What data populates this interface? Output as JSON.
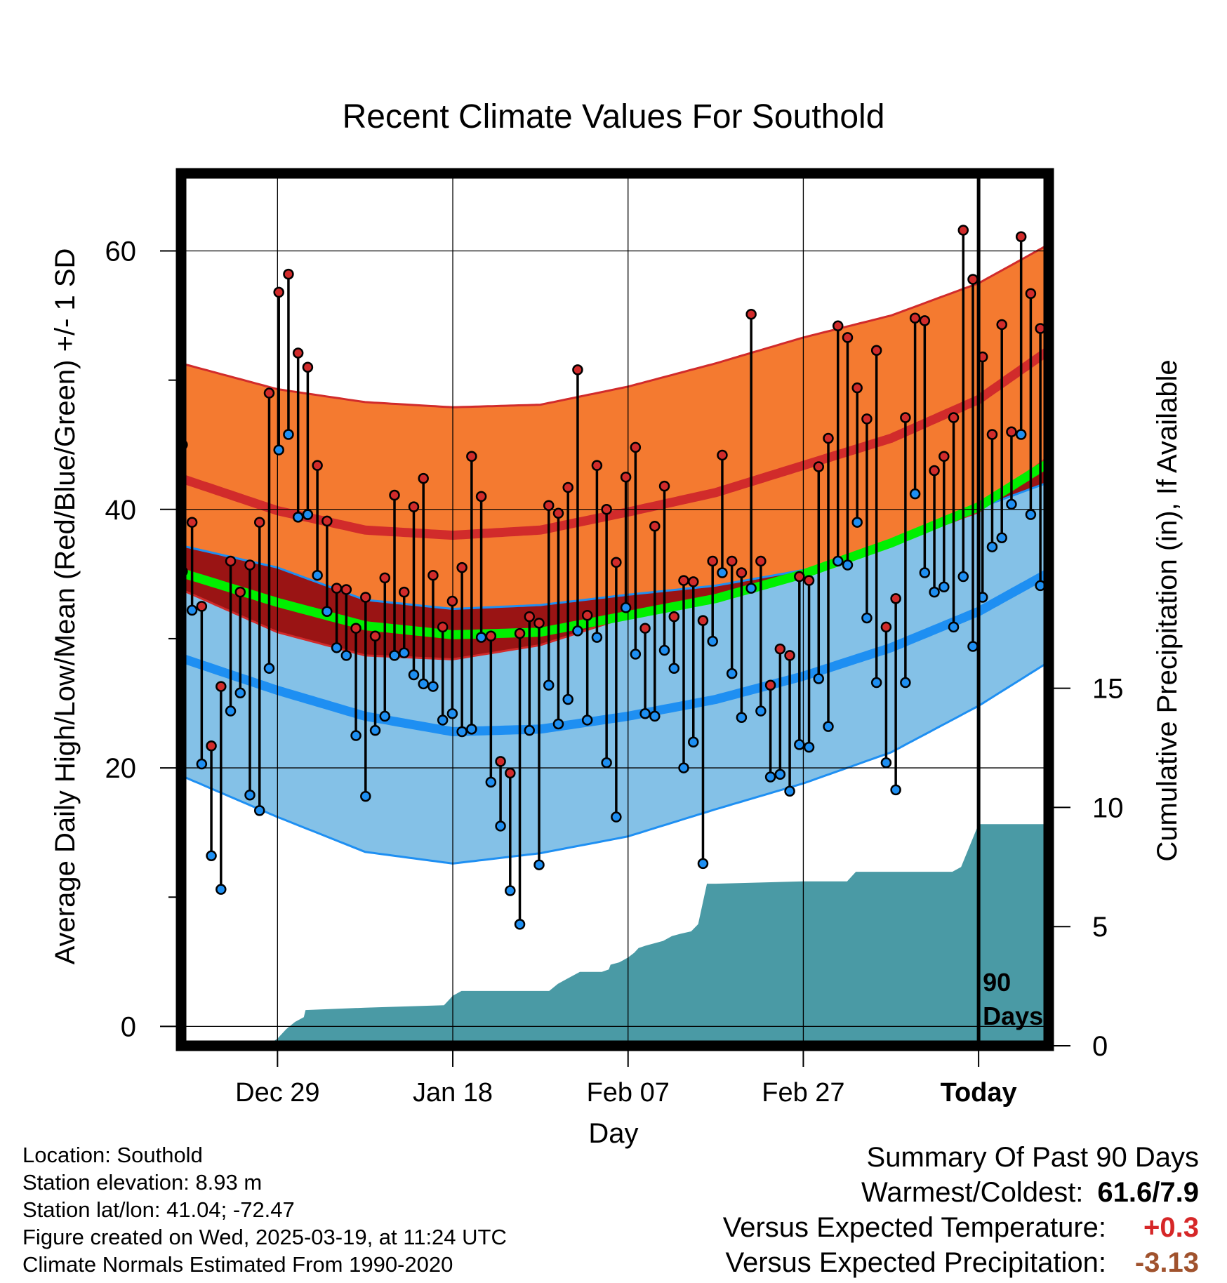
{
  "chart_data": {
    "type": "line",
    "title": "Recent Climate Values For Southold",
    "xlabel": "Day",
    "ylabel": "Average Daily High/Low/Mean (Red/Blue/Green) +/- 1 SD",
    "y2label": "Cumulative Precipitation (in), If Available",
    "xlim": [
      -11,
      88
    ],
    "ylim": [
      -1.5,
      66
    ],
    "y2lim": [
      0,
      36.6
    ],
    "x_ticks": [
      {
        "day": 0,
        "label": "Dec 29"
      },
      {
        "day": 20,
        "label": "Jan 18"
      },
      {
        "day": 40,
        "label": "Feb 07"
      },
      {
        "day": 60,
        "label": "Feb 27"
      },
      {
        "day": 80,
        "label": "Today"
      }
    ],
    "y_ticks": [
      0,
      20,
      40,
      60
    ],
    "y_minor_ticks": [
      10,
      30,
      50
    ],
    "y2_ticks": [
      0,
      5,
      10,
      15
    ],
    "today_label": "90 Days",
    "normals": {
      "x": [
        -11,
        0,
        10,
        20,
        30,
        40,
        50,
        60,
        70,
        80,
        88
      ],
      "high_mean": [
        42.4,
        39.9,
        38.4,
        38.0,
        38.4,
        39.8,
        41.3,
        43.4,
        45.5,
        48.5,
        52.3
      ],
      "high_upper": [
        51.3,
        49.3,
        48.3,
        47.9,
        48.1,
        49.5,
        51.3,
        53.3,
        55.0,
        57.5,
        60.5
      ],
      "high_lower": [
        33.8,
        30.5,
        28.7,
        28.4,
        29.5,
        31.7,
        32.9,
        34.9,
        37.3,
        39.8,
        44.1
      ],
      "low_mean": [
        28.5,
        26.0,
        24.0,
        22.8,
        23.0,
        24.0,
        25.3,
        27.1,
        29.3,
        32.1,
        35.1
      ],
      "low_upper": [
        37.2,
        35.5,
        33.0,
        32.3,
        32.6,
        33.4,
        34.1,
        35.3,
        37.2,
        40.1,
        42.1
      ],
      "low_lower": [
        19.4,
        16.2,
        13.5,
        12.6,
        13.4,
        14.7,
        16.8,
        18.8,
        21.2,
        24.8,
        28.2
      ],
      "mean": [
        35.1,
        32.8,
        31.0,
        30.3,
        30.5,
        31.8,
        33.1,
        35.0,
        37.4,
        40.2,
        43.6
      ]
    },
    "series": [
      {
        "name": "High",
        "values": [
          45,
          39,
          32.5,
          21.7,
          26.3,
          36,
          33.6,
          35.7,
          39,
          49,
          56.8,
          58.2,
          52.1,
          51,
          43.4,
          39.1,
          33.9,
          33.8,
          30.8,
          33.2,
          30.2,
          34.7,
          41.1,
          33.6,
          40.2,
          42.4,
          34.9,
          30.9,
          32.9,
          35.5,
          44.1,
          41,
          30.2,
          20.5,
          19.6,
          30.4,
          31.7,
          31.2,
          40.3,
          39.7,
          41.7,
          50.8,
          31.8,
          43.4,
          40,
          35.9,
          42.5,
          44.8,
          30.8,
          38.7,
          41.8,
          31.7,
          34.5,
          34.4,
          31.4,
          36,
          44.2,
          36,
          35.1,
          55.1,
          36,
          26.4,
          29.2,
          28.7,
          34.8,
          34.5,
          43.3,
          45.5,
          54.2,
          53.3,
          49.4,
          47,
          52.3,
          30.9,
          33.1,
          47.1,
          54.8,
          54.6,
          43,
          44.1,
          47.1,
          61.6,
          57.8,
          51.8,
          45.8,
          54.3,
          46,
          61.1,
          56.7,
          54
        ]
      },
      {
        "name": "Low",
        "values": [
          35.2,
          32.2,
          20.3,
          13.2,
          10.6,
          24.4,
          25.8,
          17.9,
          16.7,
          27.7,
          44.6,
          45.8,
          39.4,
          39.6,
          34.9,
          32.1,
          29.3,
          28.7,
          22.5,
          17.8,
          22.9,
          24,
          28.7,
          28.9,
          27.2,
          26.5,
          26.3,
          23.7,
          24.2,
          22.8,
          23,
          30.1,
          18.9,
          15.5,
          10.5,
          7.9,
          22.9,
          12.5,
          26.4,
          23.4,
          25.3,
          30.6,
          23.7,
          30.1,
          20.4,
          16.2,
          32.4,
          28.8,
          24.2,
          24,
          29.1,
          27.7,
          20,
          22,
          12.6,
          29.8,
          35.1,
          27.3,
          23.9,
          33.9,
          24.4,
          19.3,
          19.5,
          18.2,
          21.8,
          21.6,
          26.9,
          23.2,
          36,
          35.7,
          39,
          31.6,
          26.6,
          20.4,
          18.3,
          26.6,
          41.2,
          35.1,
          33.6,
          34,
          30.9,
          34.8,
          29.4,
          33.2,
          37.1,
          37.8,
          40.4,
          45.8,
          39.6,
          34.1
        ]
      },
      {
        "name": "Precipitation",
        "x": [
          -12,
          -10,
          -8,
          -4,
          -1.2,
          0,
          1,
          2,
          3,
          3.2,
          10,
          19,
          20,
          21,
          31,
          32,
          33,
          34,
          34.5,
          35,
          36,
          37,
          37.8,
          38,
          39,
          39.5,
          40,
          40.7,
          41.2,
          42,
          43,
          44,
          45,
          46,
          47.2,
          48,
          49,
          50,
          60,
          65,
          66,
          77,
          78,
          80,
          82,
          88
        ],
        "values": [
          0,
          0,
          0,
          0,
          0,
          0.3,
          0.7,
          1.0,
          1.2,
          1.5,
          1.6,
          1.7,
          2.1,
          2.3,
          2.3,
          2.6,
          2.8,
          3.0,
          3.1,
          3.1,
          3.1,
          3.1,
          3.2,
          3.4,
          3.5,
          3.6,
          3.7,
          3.9,
          4.1,
          4.2,
          4.3,
          4.4,
          4.6,
          4.7,
          4.8,
          5.1,
          6.8,
          6.8,
          6.9,
          6.9,
          7.3,
          7.3,
          7.5,
          9.3,
          9.3,
          9.3
        ]
      }
    ]
  },
  "info": {
    "location": "Location: Southold",
    "elevation": "Station elevation: 8.93 m",
    "latlon": "Station lat/lon: 41.04; -72.47",
    "created": "Figure created on Wed, 2025-03-19, at 11:24 UTC",
    "normals": "Climate Normals Estimated From 1990-2020"
  },
  "summary": {
    "title": "Summary Of Past 90 Days",
    "warmest_coldest_label": "Warmest/Coldest:",
    "warmest_coldest_value": "61.6/7.9",
    "temp_label": "Versus Expected Temperature:",
    "temp_value": "+0.3",
    "precip_label": "Versus Expected Precipitation:",
    "precip_value": "-3.13",
    "temp_color": "#d62728",
    "precip_color": "#a0522d"
  },
  "colors": {
    "high_band": "#f47a30",
    "high_line": "#d12b2b",
    "low_band": "#84c1e7",
    "low_line": "#1e8ff2",
    "overlap": "#9a1414",
    "mean_line": "#00f000",
    "precip_fill": "#4a9aa5"
  }
}
